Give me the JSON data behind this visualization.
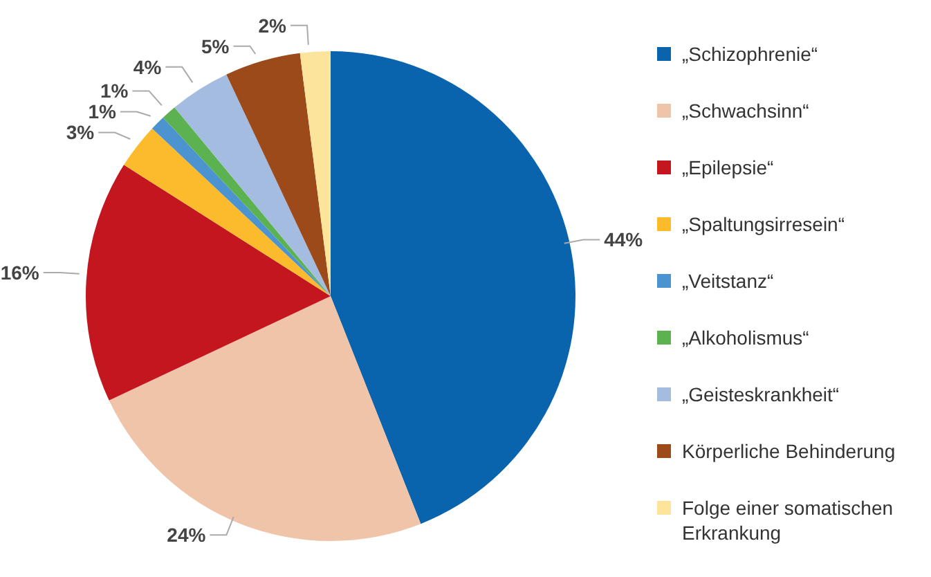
{
  "chart_data": {
    "type": "pie",
    "categories": [
      "„Schizophrenie“",
      "„Schwachsinn“",
      "„Epilepsie“",
      "„Spaltungsirresein“",
      "„Veitstanz“",
      "„Alkoholismus“",
      "„Geisteskrankheit“",
      "Körperliche Behinderung",
      "Folge einer somatischen Erkrankung"
    ],
    "values": [
      44,
      24,
      16,
      3,
      1,
      1,
      4,
      5,
      2
    ],
    "value_labels": [
      "44%",
      "24%",
      "16%",
      "3%",
      "1%",
      "1%",
      "4%",
      "5%",
      "2%"
    ],
    "colors": [
      "#0a64ad",
      "#f0c4a8",
      "#c3161f",
      "#fbbb2d",
      "#4b94d0",
      "#5cb150",
      "#a3bce0",
      "#9c4a1a",
      "#fce49a"
    ],
    "legend": "right"
  }
}
